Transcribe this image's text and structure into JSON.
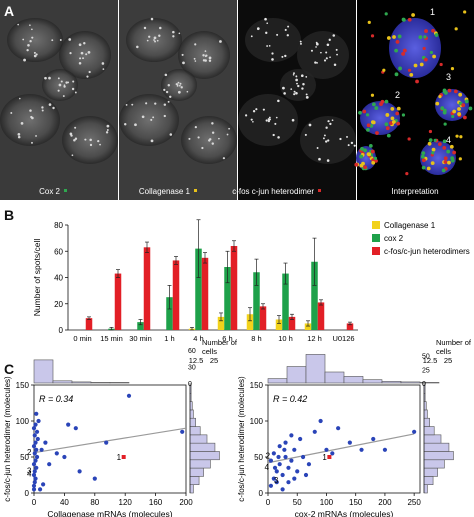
{
  "figure": {
    "panel_labels": [
      "A",
      "B",
      "C"
    ],
    "panel_a": {
      "images": [
        {
          "caption": "Cox 2",
          "marker_color": "#2fa84f"
        },
        {
          "caption": "Collagenase 1",
          "marker_color": "#e8c21a"
        },
        {
          "caption": "c-fos c-jun heterodimer",
          "marker_color": "#d62a2a"
        },
        {
          "caption": "Interpretation",
          "marker_color": ""
        }
      ],
      "cell_numbers": [
        "1",
        "2",
        "3",
        "4"
      ]
    }
  },
  "chart_data": [
    {
      "type": "bar",
      "panel": "B",
      "ylabel": "Number of spots/cell",
      "ylim": [
        0,
        80
      ],
      "yticks": [
        0,
        20,
        40,
        60,
        80
      ],
      "categories": [
        "0 min",
        "15 min",
        "30 min",
        "1 h",
        "4 h",
        "6 h",
        "8 h",
        "10 h",
        "12 h",
        "U0126"
      ],
      "legend_position": "top-right",
      "series": [
        {
          "name": "Collagenase 1",
          "color": "#f2d21b",
          "values": [
            0,
            0,
            0,
            0,
            1,
            10,
            12,
            8,
            5,
            0
          ],
          "errors": [
            0,
            0,
            0,
            0,
            1,
            3,
            5,
            3,
            2,
            0
          ]
        },
        {
          "name": "cox 2",
          "color": "#1ea14a",
          "values": [
            0,
            1,
            6,
            25,
            62,
            48,
            44,
            43,
            52,
            0
          ],
          "errors": [
            0,
            1,
            2,
            9,
            22,
            12,
            10,
            8,
            18,
            0
          ]
        },
        {
          "name": "c-fos/c-jun heterodimers",
          "color": "#e21f26",
          "values": [
            9,
            43,
            63,
            53,
            55,
            64,
            18,
            10,
            21,
            5
          ],
          "errors": [
            1,
            3,
            4,
            3,
            4,
            4,
            2,
            2,
            2,
            1
          ]
        }
      ]
    },
    {
      "type": "scatter",
      "panel": "C-left",
      "xlabel": "Collagenase mRNAs (molecules)",
      "ylabel": "c-fos/c-jun heterodimer (molecules)",
      "xlim": [
        0,
        200
      ],
      "ylim": [
        0,
        150
      ],
      "xticks": [
        0,
        40,
        80,
        120,
        160,
        200
      ],
      "yticks": [
        0,
        50,
        100,
        150
      ],
      "annotation": "R = 0.34",
      "trendline": {
        "x": [
          0,
          200
        ],
        "y": [
          56,
          90
        ]
      },
      "points": [
        {
          "x": 0,
          "y": 5
        },
        {
          "x": 0,
          "y": 10
        },
        {
          "x": 1,
          "y": 15
        },
        {
          "x": 2,
          "y": 20
        },
        {
          "x": 0,
          "y": 25
        },
        {
          "x": 1,
          "y": 30
        },
        {
          "x": 3,
          "y": 35
        },
        {
          "x": 0,
          "y": 40
        },
        {
          "x": 2,
          "y": 45
        },
        {
          "x": 4,
          "y": 50
        },
        {
          "x": 1,
          "y": 55
        },
        {
          "x": 3,
          "y": 60
        },
        {
          "x": 0,
          "y": 65
        },
        {
          "x": 2,
          "y": 70
        },
        {
          "x": 5,
          "y": 75
        },
        {
          "x": 1,
          "y": 80
        },
        {
          "x": 4,
          "y": 85
        },
        {
          "x": 0,
          "y": 90
        },
        {
          "x": 2,
          "y": 95
        },
        {
          "x": 6,
          "y": 100
        },
        {
          "x": 3,
          "y": 110
        },
        {
          "x": 10,
          "y": 60
        },
        {
          "x": 15,
          "y": 70
        },
        {
          "x": 20,
          "y": 40
        },
        {
          "x": 30,
          "y": 55
        },
        {
          "x": 40,
          "y": 50
        },
        {
          "x": 45,
          "y": 95
        },
        {
          "x": 55,
          "y": 90
        },
        {
          "x": 60,
          "y": 30
        },
        {
          "x": 80,
          "y": 20
        },
        {
          "x": 95,
          "y": 70
        },
        {
          "x": 125,
          "y": 135
        },
        {
          "x": 195,
          "y": 85
        },
        {
          "x": 8,
          "y": 5
        },
        {
          "x": 12,
          "y": 12
        }
      ],
      "highlight_points": [
        {
          "label": "1",
          "x": 118,
          "y": 50,
          "color": "#e21f26"
        },
        {
          "label": "2",
          "x": 0,
          "y": 57,
          "color": "#111111"
        },
        {
          "label": "3",
          "x": 0,
          "y": 31,
          "color": "#111111"
        },
        {
          "label": "4",
          "x": 0,
          "y": 27,
          "color": "#111111"
        }
      ],
      "top_hist": {
        "values": [
          42,
          4,
          2,
          1,
          1
        ],
        "ticks": [
          0,
          30,
          60
        ]
      },
      "right_hist": {
        "xlabel": "Number of cells",
        "ticks": [
          12.5,
          25
        ],
        "values": [
          3,
          8,
          12,
          18,
          26,
          22,
          15,
          9,
          5,
          3,
          2,
          1,
          1
        ]
      }
    },
    {
      "type": "scatter",
      "panel": "C-right",
      "xlabel": "cox-2 mRNAs (molecules)",
      "ylabel": "c-fos/c-jun heterodimer (molecules)",
      "xlim": [
        0,
        260
      ],
      "ylim": [
        0,
        150
      ],
      "xticks": [
        0,
        50,
        100,
        150,
        200,
        250
      ],
      "yticks": [
        0,
        50,
        100,
        150
      ],
      "annotation": "R = 0.42",
      "trendline": {
        "x": [
          0,
          250
        ],
        "y": [
          42,
          82
        ]
      },
      "points": [
        {
          "x": 5,
          "y": 10
        },
        {
          "x": 10,
          "y": 20
        },
        {
          "x": 15,
          "y": 30
        },
        {
          "x": 20,
          "y": 40
        },
        {
          "x": 25,
          "y": 25
        },
        {
          "x": 30,
          "y": 50
        },
        {
          "x": 35,
          "y": 35
        },
        {
          "x": 40,
          "y": 45
        },
        {
          "x": 45,
          "y": 60
        },
        {
          "x": 50,
          "y": 30
        },
        {
          "x": 10,
          "y": 55
        },
        {
          "x": 20,
          "y": 65
        },
        {
          "x": 30,
          "y": 70
        },
        {
          "x": 40,
          "y": 80
        },
        {
          "x": 55,
          "y": 75
        },
        {
          "x": 60,
          "y": 50
        },
        {
          "x": 70,
          "y": 40
        },
        {
          "x": 80,
          "y": 85
        },
        {
          "x": 90,
          "y": 100
        },
        {
          "x": 100,
          "y": 60
        },
        {
          "x": 110,
          "y": 55
        },
        {
          "x": 120,
          "y": 90
        },
        {
          "x": 140,
          "y": 70
        },
        {
          "x": 160,
          "y": 60
        },
        {
          "x": 180,
          "y": 75
        },
        {
          "x": 200,
          "y": 60
        },
        {
          "x": 250,
          "y": 85
        },
        {
          "x": 15,
          "y": 15
        },
        {
          "x": 25,
          "y": 5
        },
        {
          "x": 35,
          "y": 15
        },
        {
          "x": 45,
          "y": 20
        },
        {
          "x": 65,
          "y": 25
        },
        {
          "x": 5,
          "y": 45
        },
        {
          "x": 12,
          "y": 35
        },
        {
          "x": 18,
          "y": 50
        },
        {
          "x": 28,
          "y": 60
        }
      ],
      "highlight_points": [
        {
          "label": "1",
          "x": 105,
          "y": 50,
          "color": "#e21f26"
        },
        {
          "label": "2",
          "x": 8,
          "y": 52,
          "color": "#111111"
        },
        {
          "label": "3",
          "x": 22,
          "y": 18,
          "color": "#111111"
        },
        {
          "label": "4",
          "x": 6,
          "y": 36,
          "color": "#111111"
        }
      ],
      "top_hist": {
        "values": [
          8,
          30,
          52,
          20,
          12,
          6,
          3,
          2,
          1
        ],
        "ticks": [
          0,
          25,
          50
        ]
      },
      "right_hist": {
        "xlabel": "Number of cells",
        "ticks": [
          12.5,
          25
        ],
        "values": [
          3,
          8,
          12,
          18,
          26,
          22,
          15,
          9,
          5,
          3,
          2,
          1,
          1
        ]
      }
    }
  ]
}
